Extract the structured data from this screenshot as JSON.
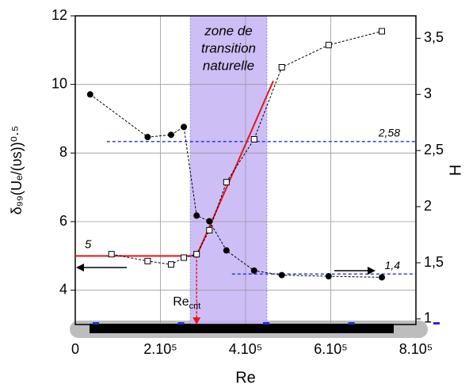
{
  "chart_data": {
    "type": "line",
    "x_label": "Re",
    "y_label": "δ₉₉(Uₑ/(υs))⁰·⁵",
    "y2_label": "H",
    "xlim": [
      0,
      800000
    ],
    "xticks": [
      0,
      {
        "value": 200000,
        "label": "2.10⁵"
      },
      {
        "value": 400000,
        "label": "4.10⁵"
      },
      {
        "value": 600000,
        "label": "6.10⁵"
      },
      {
        "value": 800000,
        "label": "8.10⁵"
      }
    ],
    "ylim": [
      3,
      12
    ],
    "yticks": [
      4,
      6,
      8,
      10,
      12
    ],
    "y2lim": [
      0.95,
      3.7
    ],
    "y2ticks": [
      1,
      {
        "value": 1.5,
        "label": "1,5"
      },
      2,
      {
        "value": 2.5,
        "label": "2,5"
      },
      3,
      {
        "value": 3.5,
        "label": "3,5"
      }
    ],
    "grid": true,
    "series": [
      {
        "marker": "square",
        "color": "#000000",
        "x": [
          85000,
          170000,
          225000,
          255000,
          285000,
          315000,
          355000,
          420000,
          485000,
          595000,
          720000
        ],
        "values": [
          5.05,
          4.85,
          4.75,
          4.95,
          5.05,
          5.75,
          7.15,
          8.4,
          10.5,
          11.15,
          11.55
        ]
      },
      {
        "marker": "circle",
        "color": "#000000",
        "axis": "y2",
        "x": [
          35000,
          170000,
          225000,
          255000,
          285000,
          315000,
          355000,
          420000,
          485000,
          595000,
          720000
        ],
        "values": [
          3.0,
          2.62,
          2.64,
          2.71,
          1.92,
          1.87,
          1.61,
          1.43,
          1.39,
          1.38,
          1.37
        ]
      }
    ],
    "zone": {
      "text": [
        "zone de",
        "transition",
        "naturelle"
      ],
      "x": [
        270000,
        450000
      ],
      "color": "#c4b3f5"
    },
    "fit_line": {
      "color": "#e8141c",
      "x": [
        0,
        285000,
        465000
      ],
      "values": [
        5,
        5,
        10.1
      ]
    },
    "re_crit": {
      "label": "Re",
      "sub": "crit",
      "x": 285000
    },
    "hlines": [
      {
        "value": 2.58,
        "label": "2,58",
        "axis": "y2",
        "x_start": 74000,
        "color": "#1f2fd6"
      },
      {
        "value": 1.4,
        "label": "1,4",
        "axis": "y2",
        "x_start": 368000,
        "color": "#1f2fd6"
      }
    ]
  }
}
